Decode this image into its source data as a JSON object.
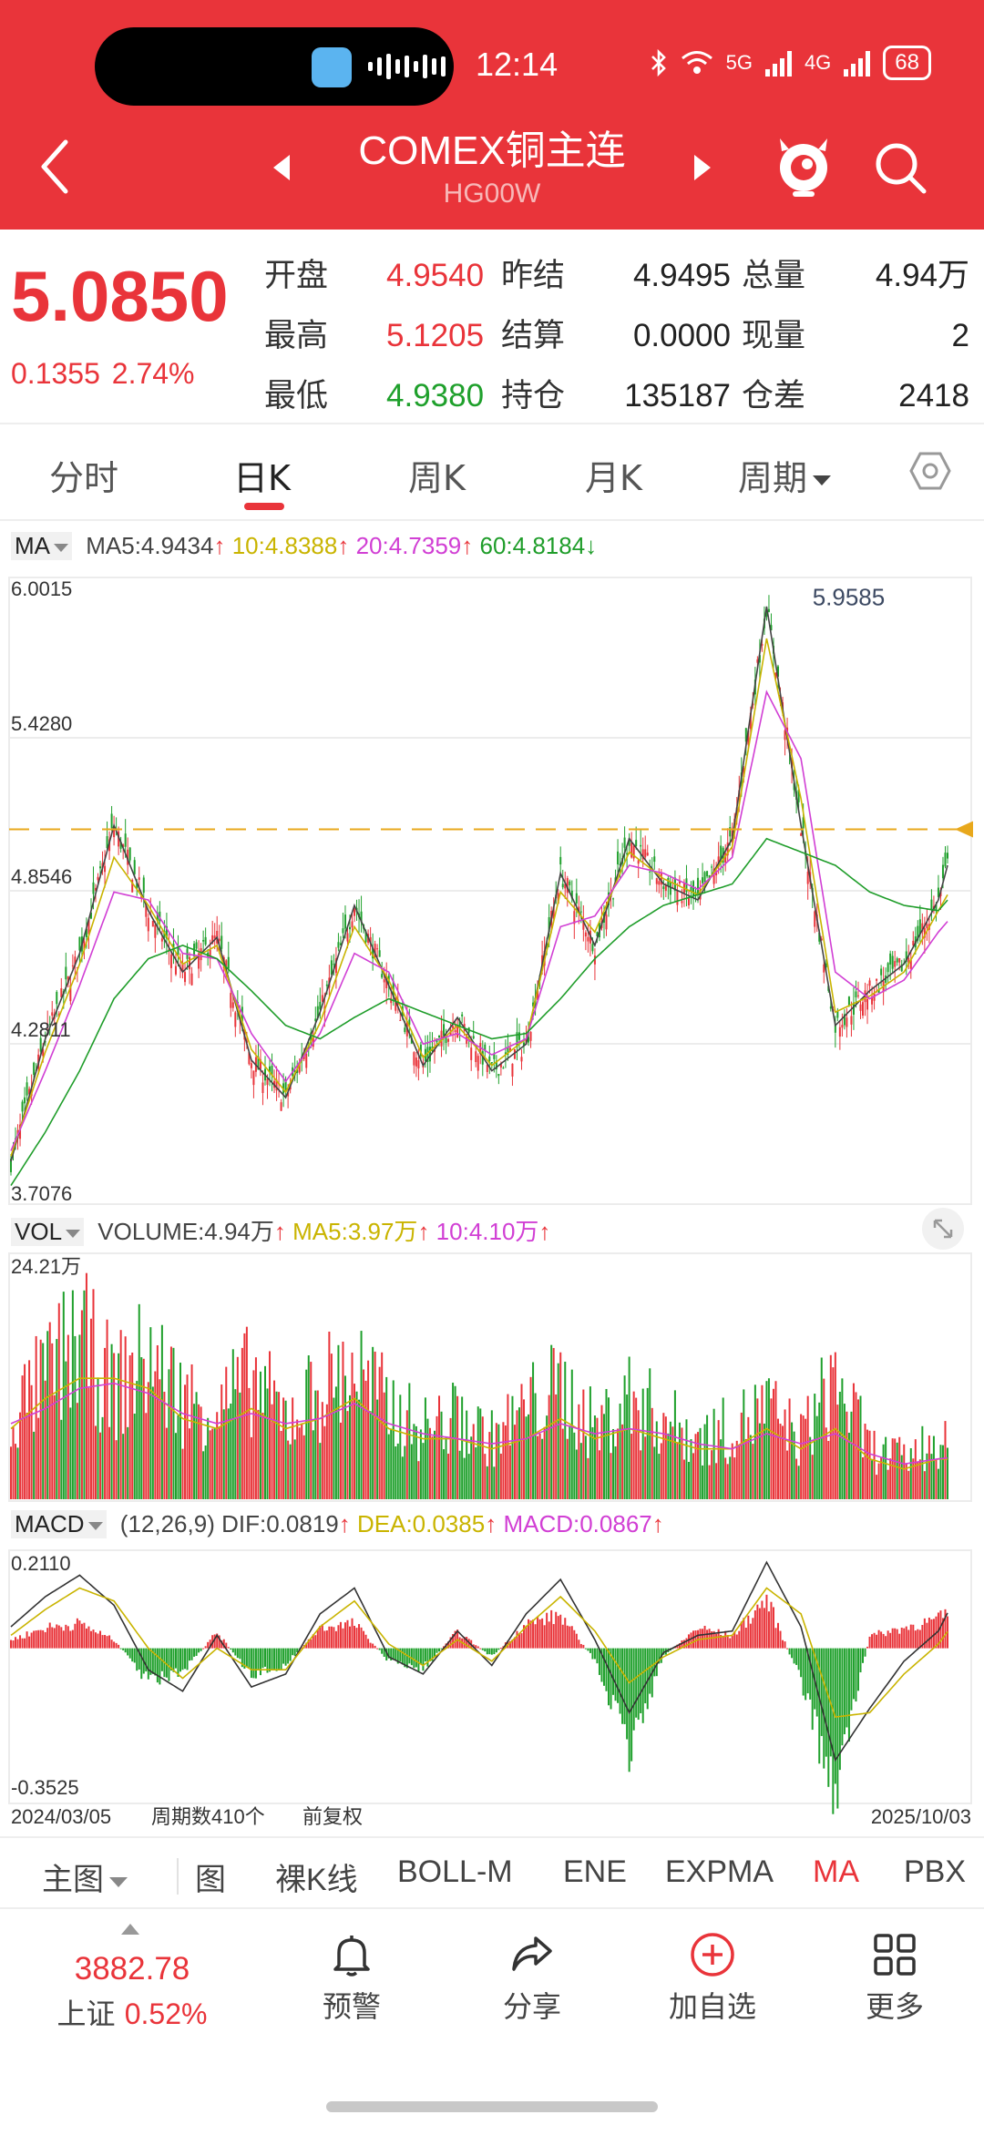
{
  "status_bar": {
    "time": "12:14",
    "network_5g": "5G",
    "network_4g": "4G",
    "battery": "68"
  },
  "header": {
    "title": "COMEX铜主连",
    "code": "HG00W"
  },
  "quote": {
    "price": "5.0850",
    "change": "0.1355",
    "change_pct": "2.74%",
    "rows": [
      [
        {
          "label": "开盘",
          "value": "4.9540"
        },
        {
          "label": "昨结",
          "value": "4.9495"
        },
        {
          "label": "总量",
          "value": "4.94万"
        }
      ],
      [
        {
          "label": "最高",
          "value": "5.1205"
        },
        {
          "label": "结算",
          "value": "0.0000"
        },
        {
          "label": "现量",
          "value": "2"
        }
      ],
      [
        {
          "label": "最低",
          "value": "4.9380"
        },
        {
          "label": "持仓",
          "value": "135187"
        },
        {
          "label": "仓差",
          "value": "2418"
        }
      ]
    ]
  },
  "tabs": [
    "分时",
    "日K",
    "周K",
    "月K",
    "周期"
  ],
  "active_tab": "日K",
  "ma_legend": {
    "name": "MA",
    "ma5": "MA5:4.9434",
    "ma10": "10:4.8388",
    "ma20": "20:4.7359",
    "ma60": "60:4.8184"
  },
  "vol_legend": {
    "name": "VOL",
    "volume": "VOLUME:4.94万",
    "ma5": "MA5:3.97万",
    "ma10": "10:4.10万"
  },
  "macd_legend": {
    "name": "MACD",
    "params": "(12,26,9)",
    "dif": "DIF:0.0819",
    "dea": "DEA:0.0385",
    "macd": "MACD:0.0867"
  },
  "chart_data": [
    {
      "type": "line",
      "title": "",
      "y_ticks": [
        "6.0015",
        "5.4280",
        "4.8546",
        "4.2811",
        "3.7076"
      ],
      "ylim": [
        3.7076,
        6.0015
      ],
      "max_label": "5.9585",
      "last_price": 5.085,
      "x_range": [
        "2024/03/05",
        "2025/10/03"
      ],
      "x": [
        0,
        15,
        30,
        45,
        60,
        75,
        90,
        105,
        120,
        135,
        150,
        165,
        180,
        195,
        210,
        225,
        240,
        255,
        270,
        285,
        300,
        315,
        330,
        345,
        360,
        375,
        390,
        405,
        409
      ],
      "series": [
        {
          "name": "MA5",
          "values": [
            3.84,
            4.3,
            4.62,
            5.1,
            4.78,
            4.55,
            4.68,
            4.22,
            4.08,
            4.4,
            4.8,
            4.5,
            4.2,
            4.38,
            4.18,
            4.28,
            4.92,
            4.65,
            5.05,
            4.88,
            4.82,
            5.05,
            5.92,
            5.1,
            4.35,
            4.48,
            4.58,
            4.82,
            4.95
          ]
        },
        {
          "name": "10",
          "values": [
            3.86,
            4.25,
            4.58,
            4.98,
            4.8,
            4.58,
            4.65,
            4.26,
            4.1,
            4.36,
            4.72,
            4.52,
            4.23,
            4.35,
            4.2,
            4.3,
            4.85,
            4.7,
            5.0,
            4.9,
            4.84,
            5.02,
            5.8,
            5.2,
            4.4,
            4.46,
            4.55,
            4.78,
            4.84
          ]
        },
        {
          "name": "20",
          "values": [
            3.88,
            4.18,
            4.5,
            4.85,
            4.82,
            4.62,
            4.6,
            4.32,
            4.14,
            4.32,
            4.62,
            4.55,
            4.28,
            4.32,
            4.24,
            4.3,
            4.72,
            4.76,
            4.95,
            4.92,
            4.86,
            4.98,
            5.6,
            5.35,
            4.55,
            4.45,
            4.52,
            4.7,
            4.74
          ]
        },
        {
          "name": "60",
          "values": [
            3.75,
            3.95,
            4.18,
            4.45,
            4.6,
            4.65,
            4.6,
            4.48,
            4.35,
            4.3,
            4.38,
            4.45,
            4.4,
            4.35,
            4.3,
            4.32,
            4.45,
            4.6,
            4.72,
            4.8,
            4.84,
            4.88,
            5.05,
            5.0,
            4.95,
            4.85,
            4.8,
            4.78,
            4.82
          ]
        }
      ]
    },
    {
      "type": "bar",
      "title": "",
      "y_ticks": [
        "24.21万"
      ],
      "ylim": [
        0,
        24.21
      ],
      "x": [
        0,
        15,
        30,
        45,
        60,
        75,
        90,
        105,
        120,
        135,
        150,
        165,
        180,
        195,
        210,
        225,
        240,
        255,
        270,
        285,
        300,
        315,
        330,
        345,
        360,
        375,
        390,
        405,
        409
      ],
      "series": [
        {
          "name": "VOLUME",
          "values": [
            8,
            12,
            16,
            11,
            14,
            10,
            9,
            12,
            8,
            11,
            13,
            9,
            7,
            8,
            6,
            9,
            11,
            7,
            10,
            8,
            6,
            7,
            9,
            6,
            12,
            5,
            4,
            6,
            4.94
          ]
        },
        {
          "name": "MA5",
          "values": [
            7,
            10,
            12,
            12,
            11,
            8,
            7,
            9,
            7,
            8,
            10,
            7,
            6,
            6,
            5,
            6,
            8,
            6,
            7,
            6,
            5,
            5,
            7,
            5,
            7,
            4,
            3,
            4,
            3.97
          ]
        },
        {
          "name": "10",
          "values": [
            7.5,
            9,
            11,
            11.5,
            10.5,
            8.5,
            7.5,
            8.5,
            7.5,
            8,
            9.5,
            7.5,
            6.5,
            6,
            5.5,
            6,
            7.5,
            6.5,
            7,
            6.5,
            5.5,
            5,
            6.5,
            5.5,
            6.5,
            4.5,
            3.5,
            4,
            4.1
          ]
        }
      ]
    },
    {
      "type": "bar",
      "title": "",
      "y_ticks": [
        "0.2110",
        "-0.3525"
      ],
      "ylim": [
        -0.3525,
        0.211
      ],
      "x_labels": [
        "2024/03/05",
        "2025/10/03"
      ],
      "x": [
        0,
        15,
        30,
        45,
        60,
        75,
        90,
        105,
        120,
        135,
        150,
        165,
        180,
        195,
        210,
        225,
        240,
        255,
        270,
        285,
        300,
        315,
        330,
        345,
        360,
        375,
        390,
        405,
        409
      ],
      "series": [
        {
          "name": "MACD",
          "values": [
            0.02,
            0.05,
            0.06,
            0.02,
            -0.08,
            -0.06,
            0.04,
            -0.07,
            -0.04,
            0.05,
            0.06,
            -0.03,
            -0.05,
            0.04,
            -0.02,
            0.06,
            0.08,
            -0.03,
            -0.25,
            -0.02,
            0.05,
            0.03,
            0.12,
            -0.08,
            -0.35,
            0.03,
            0.05,
            0.07,
            0.0867
          ]
        },
        {
          "name": "DIF",
          "values": [
            0.05,
            0.12,
            0.17,
            0.1,
            -0.05,
            -0.1,
            0.03,
            -0.09,
            -0.06,
            0.08,
            0.14,
            -0.02,
            -0.06,
            0.04,
            -0.04,
            0.08,
            0.16,
            0.02,
            -0.15,
            -0.01,
            0.03,
            0.04,
            0.2,
            0.05,
            -0.26,
            -0.14,
            -0.03,
            0.04,
            0.0819
          ]
        },
        {
          "name": "DEA",
          "values": [
            0.03,
            0.09,
            0.14,
            0.11,
            0.0,
            -0.07,
            0.0,
            -0.05,
            -0.05,
            0.05,
            0.11,
            0.01,
            -0.04,
            0.02,
            -0.03,
            0.05,
            0.12,
            0.04,
            -0.08,
            -0.02,
            0.02,
            0.03,
            0.14,
            0.08,
            -0.16,
            -0.15,
            -0.06,
            0.01,
            0.0385
          ]
        }
      ]
    }
  ],
  "chart_footer": {
    "start_date": "2024/03/05",
    "period_count": "周期数410个",
    "adjust": "前复权",
    "end_date": "2025/10/03"
  },
  "indicator_bar": {
    "main": "主图",
    "items": [
      "图",
      "裸K线",
      "BOLL-M",
      "ENE",
      "EXPMA",
      "MA",
      "PBX"
    ],
    "active": "MA"
  },
  "bottom_nav": {
    "index_value": "3882.78",
    "index_name": "上证",
    "index_change": "0.52%",
    "items": [
      "预警",
      "分享",
      "加自选",
      "更多"
    ]
  },
  "colors": {
    "brand_red": "#E9343A",
    "up": "#E9343A",
    "down": "#1FA02C",
    "ma5": "#444444",
    "ma10": "#C9B400",
    "ma20": "#D13FD4",
    "ma60": "#1F9D2A"
  }
}
